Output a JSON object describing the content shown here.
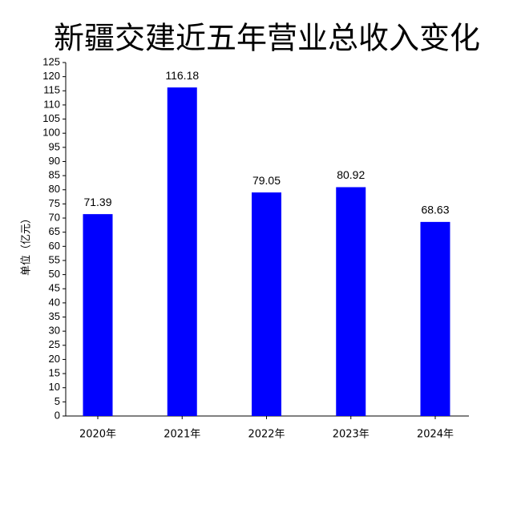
{
  "chart_data": {
    "type": "bar",
    "title": "新疆交建近五年营业总收入变化",
    "y_label": "单位（亿元）",
    "categories": [
      "2020年",
      "2021年",
      "2022年",
      "2023年",
      "2024年"
    ],
    "values": [
      71.39,
      116.18,
      79.05,
      80.92,
      68.63
    ],
    "color": "#0000ff",
    "ylim": [
      0,
      125
    ],
    "yticks": [
      0,
      5,
      10,
      15,
      20,
      25,
      30,
      35,
      40,
      45,
      50,
      55,
      60,
      65,
      70,
      75,
      80,
      85,
      90,
      95,
      100,
      105,
      110,
      115,
      120,
      125
    ],
    "grid": false
  }
}
